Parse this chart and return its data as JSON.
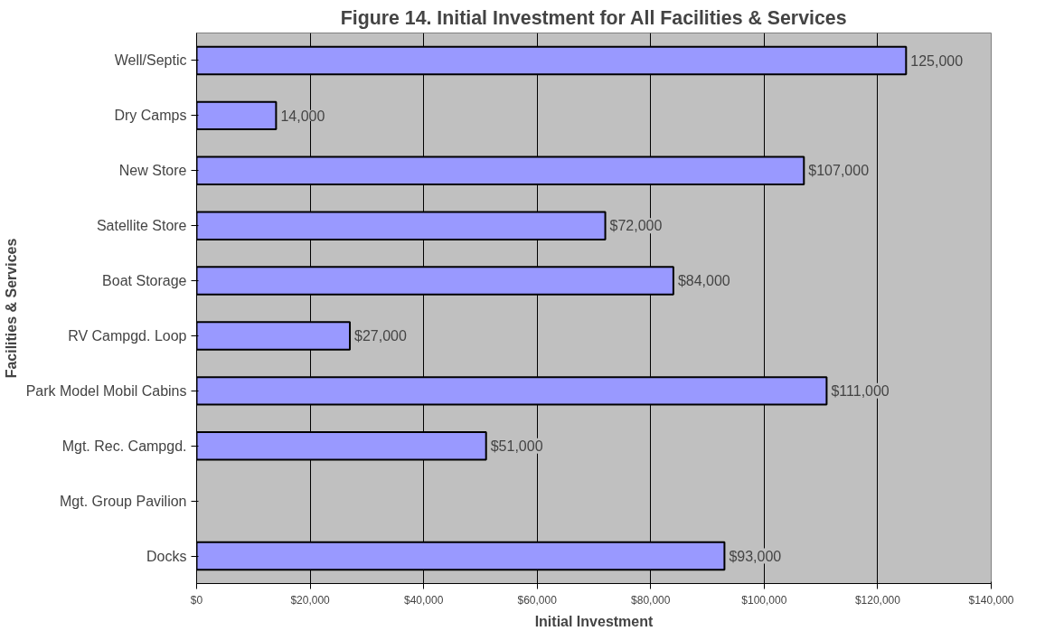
{
  "chart_data": {
    "type": "bar",
    "orientation": "horizontal",
    "title": "Figure 14. Initial Investment for All Facilities & Services",
    "xlabel": "Initial Investment",
    "ylabel": "Facilities & Services",
    "categories": [
      "Well/Septic",
      "Dry Camps",
      "New Store",
      "Satellite Store",
      "Boat Storage",
      "RV Campgd. Loop",
      "Park Model Mobil Cabins",
      "Mgt. Rec. Campgd.",
      "Mgt. Group Pavilion",
      "Docks"
    ],
    "values": [
      125000,
      14000,
      107000,
      72000,
      84000,
      27000,
      111000,
      51000,
      null,
      93000
    ],
    "value_labels": [
      "125,000",
      "14,000",
      "$107,000",
      "$72,000",
      "$84,000",
      "$27,000",
      "$111,000",
      "$51,000",
      null,
      "$93,000"
    ],
    "color": "#9999ff",
    "xlim": [
      0,
      140000
    ],
    "xticks": [
      {
        "value": 0,
        "label": "$0"
      },
      {
        "value": 20000,
        "label": "$20,000"
      },
      {
        "value": 40000,
        "label": "$40,000"
      },
      {
        "value": 60000,
        "label": "$60,000"
      },
      {
        "value": 80000,
        "label": "$80,000"
      },
      {
        "value": 100000,
        "label": "$100,000"
      },
      {
        "value": 120000,
        "label": "$120,000"
      },
      {
        "value": 140000,
        "label": "$140,000"
      }
    ],
    "grid": "x"
  }
}
